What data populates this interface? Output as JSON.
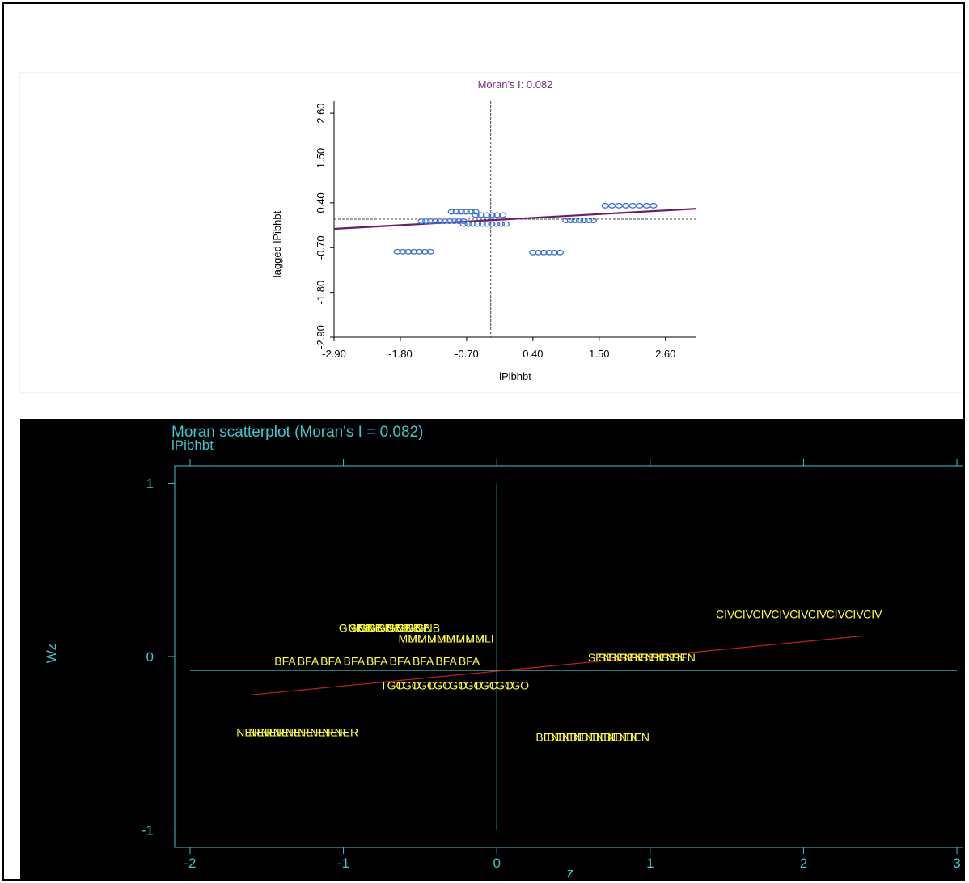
{
  "chart_data": [
    {
      "type": "scatter",
      "title": "Moran's I: 0.082",
      "xlabel": "lPibhbt",
      "ylabel": "lagged lPibhbt",
      "xlim": [
        -2.9,
        3.1
      ],
      "ylim": [
        -2.9,
        2.9
      ],
      "xticks": [
        "-2.90",
        "-1.80",
        "-0.70",
        "0.40",
        "1.50",
        "2.60"
      ],
      "yticks": [
        "-2.90",
        "-1.80",
        "-0.70",
        "0.40",
        "1.50",
        "2.60"
      ],
      "x_mean_line": -0.3,
      "y_mean_line": 0.0,
      "fit_line": {
        "intercept": 0.0,
        "slope": 0.082
      },
      "colors": {
        "points": "#3a6fd8",
        "fit": "#6a1b6e",
        "title": "#7b2a86"
      },
      "clusters": [
        {
          "x_from": -1.85,
          "x_to": -1.3,
          "y": -0.8,
          "n": 7
        },
        {
          "x_from": -1.45,
          "x_to": -0.75,
          "y": -0.05,
          "n": 10
        },
        {
          "x_from": -0.95,
          "x_to": -0.55,
          "y": 0.18,
          "n": 6
        },
        {
          "x_from": -0.75,
          "x_to": -0.05,
          "y": -0.12,
          "n": 10
        },
        {
          "x_from": -0.55,
          "x_to": -0.1,
          "y": 0.1,
          "n": 6
        },
        {
          "x_from": 0.4,
          "x_to": 0.85,
          "y": -0.82,
          "n": 6
        },
        {
          "x_from": 0.95,
          "x_to": 1.4,
          "y": -0.03,
          "n": 7
        },
        {
          "x_from": 1.6,
          "x_to": 2.4,
          "y": 0.33,
          "n": 8
        }
      ]
    },
    {
      "type": "scatter",
      "title": "Moran scatterplot (Moran's I = 0.082)",
      "subtitle": "lPibhbt",
      "xlabel": "z",
      "ylabel": "Wz",
      "xlim": [
        -2.1,
        3.1
      ],
      "ylim": [
        -1.1,
        1.1
      ],
      "xticks": [
        -2,
        -1,
        0,
        1,
        2,
        3
      ],
      "yticks": [
        -1,
        0,
        1
      ],
      "x_mean_line": 0,
      "y_mean_line": -0.08,
      "fit_line": {
        "x": [
          -1.6,
          2.4
        ],
        "y": [
          -0.22,
          0.12
        ]
      },
      "colors": {
        "axes": "#3ec6c8",
        "labels": "#ffff33",
        "fit": "#c41e1e"
      },
      "groups": [
        {
          "label": "NER",
          "x_from": -1.62,
          "x_to": -0.98,
          "y": -0.43
        },
        {
          "label": "BFA",
          "x_from": -1.38,
          "x_to": -0.18,
          "y": -0.02
        },
        {
          "label": "GNB",
          "x_from": -0.95,
          "x_to": -0.45,
          "y": 0.17
        },
        {
          "label": "MLI",
          "x_from": -0.58,
          "x_to": -0.08,
          "y": 0.11
        },
        {
          "label": "TGO",
          "x_from": -0.68,
          "x_to": 0.13,
          "y": -0.16
        },
        {
          "label": "SEN",
          "x_from": 0.67,
          "x_to": 1.22,
          "y": 0.0
        },
        {
          "label": "BEN",
          "x_from": 0.33,
          "x_to": 0.92,
          "y": -0.46
        },
        {
          "label": "CIV",
          "x_from": 1.49,
          "x_to": 2.45,
          "y": 0.25
        }
      ]
    }
  ]
}
